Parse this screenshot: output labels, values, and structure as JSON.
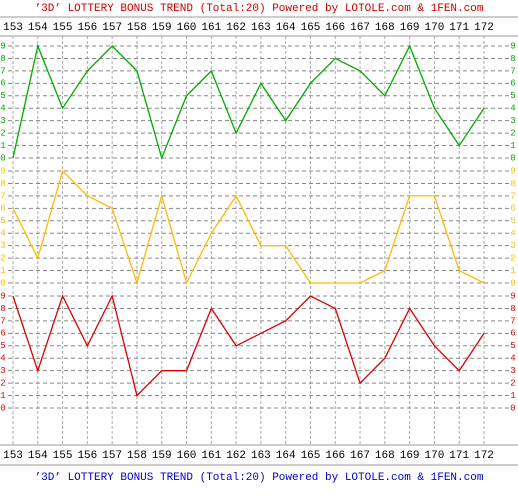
{
  "chart_data": {
    "type": "line",
    "title": "’3D’ LOTTERY BONUS TREND (Total:20)  Powered by LOTOLE.com & 1FEN.com",
    "categories": [
      "153",
      "154",
      "155",
      "156",
      "157",
      "158",
      "159",
      "160",
      "161",
      "162",
      "163",
      "164",
      "165",
      "166",
      "167",
      "168",
      "169",
      "170",
      "171",
      "172"
    ],
    "series": [
      {
        "color": "#00aa00",
        "values": [
          0,
          9,
          4,
          7,
          9,
          7,
          0,
          5,
          7,
          2,
          6,
          3,
          6,
          8,
          7,
          5,
          9,
          4,
          1,
          4
        ]
      },
      {
        "color": "#ffbb00",
        "values": [
          6,
          2,
          9,
          7,
          6,
          0,
          7,
          0,
          4,
          7,
          3,
          3,
          0,
          0,
          0,
          1,
          7,
          7,
          1,
          0
        ]
      },
      {
        "color": "#dd0000",
        "values": [
          9,
          3,
          9,
          5,
          9,
          1,
          3,
          3,
          8,
          5,
          6,
          7,
          9,
          8,
          2,
          4,
          8,
          5,
          3,
          6
        ]
      }
    ],
    "ylim": [
      0,
      9
    ],
    "yticks": [
      0,
      1,
      2,
      3,
      4,
      5,
      6,
      7,
      8,
      9
    ],
    "grid": true,
    "title_color": "#cc0000",
    "footer_color": "#0000cc"
  }
}
